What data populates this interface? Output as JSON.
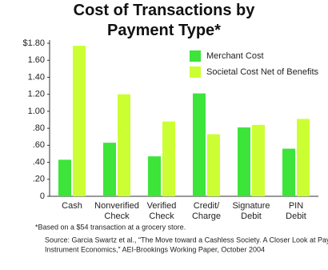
{
  "chart_data": {
    "type": "bar",
    "title": "Cost of Transactions by\nPayment Type*",
    "categories": [
      "Cash",
      "Nonverified\nCheck",
      "Verified\nCheck",
      "Credit/\nCharge",
      "Signature\nDebit",
      "PIN\nDebit"
    ],
    "series": [
      {
        "name": "Merchant Cost",
        "color": "#3de43a",
        "values": [
          0.43,
          0.63,
          0.47,
          1.21,
          0.81,
          0.56
        ]
      },
      {
        "name": "Societal Cost Net of  Benefits",
        "color": "#ccff33",
        "values": [
          1.77,
          1.2,
          0.88,
          0.73,
          0.84,
          0.91
        ]
      }
    ],
    "ylim": [
      0,
      1.8
    ],
    "yticks": [
      0,
      {
        "value": 0.2,
        "label": ".20"
      },
      {
        "value": 0.4,
        "label": ".40"
      },
      {
        "value": 0.6,
        "label": ".60"
      },
      {
        "value": 0.8,
        "label": ".80"
      },
      {
        "value": 1.0,
        "label": "1.00"
      },
      {
        "value": 1.2,
        "label": "1.20"
      },
      {
        "value": 1.4,
        "label": "1.40"
      },
      {
        "value": 1.6,
        "label": "1.60"
      },
      {
        "value": 1.8,
        "label": "$1.80"
      }
    ],
    "legend": "upper right",
    "footnote": "*Based on a $54 transaction at a grocery store.",
    "source": [
      "Source: Garcia Swartz et al., “The Move toward a Cashless Society. A Closer Look at Payment",
      "Instrument Economics,” AEI-Brookings Working Paper, October 2004"
    ]
  }
}
